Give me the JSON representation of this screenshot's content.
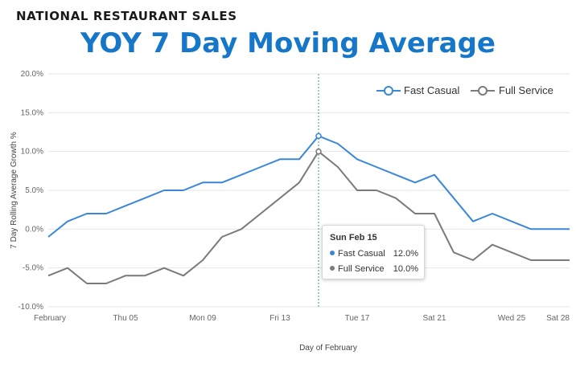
{
  "header": {
    "supertitle": "NATIONAL RESTAURANT SALES",
    "title": "YOY 7 Day Moving Average"
  },
  "colors": {
    "fast_casual": "#3a87d9",
    "full_service": "#7a7a7a",
    "crosshair": "#2e9b6a",
    "title": "#1677c9"
  },
  "chart_data": {
    "type": "line",
    "xlabel": "Day of February",
    "ylabel": "7 Day Rolling Average Growth %",
    "ylim": [
      -10,
      20
    ],
    "y_ticks": [
      "20.0%",
      "15.0%",
      "10.0%",
      "5.0%",
      "0.0%",
      "-5.0%",
      "-10.0%"
    ],
    "x_tick_labels": [
      {
        "day": 1,
        "label": "February"
      },
      {
        "day": 5,
        "label": "Thu 05"
      },
      {
        "day": 9,
        "label": "Mon 09"
      },
      {
        "day": 13,
        "label": "Fri 13"
      },
      {
        "day": 17,
        "label": "Tue 17"
      },
      {
        "day": 21,
        "label": "Sat 21"
      },
      {
        "day": 25,
        "label": "Wed 25"
      },
      {
        "day": 28,
        "label": "Sat 28"
      }
    ],
    "x": [
      1,
      2,
      3,
      4,
      5,
      6,
      7,
      8,
      9,
      10,
      11,
      12,
      13,
      14,
      15,
      16,
      17,
      18,
      19,
      20,
      21,
      22,
      23,
      24,
      25,
      26,
      27,
      28
    ],
    "series": [
      {
        "name": "Fast Casual",
        "values": [
          -1,
          1,
          2,
          2,
          3,
          4,
          5,
          5,
          6,
          6,
          7,
          8,
          9,
          9,
          12,
          11,
          9,
          8,
          7,
          6,
          7,
          4,
          1,
          2,
          1,
          0,
          0,
          0
        ]
      },
      {
        "name": "Full Service",
        "values": [
          -6,
          -5,
          -7,
          -7,
          -6,
          -6,
          -5,
          -6,
          -4,
          -1,
          0,
          2,
          4,
          6,
          10,
          8,
          5,
          5,
          4,
          2,
          2,
          -3,
          -4,
          -2,
          -3,
          -4,
          -4,
          -4
        ]
      }
    ],
    "legend_position": "top-right",
    "grid": true,
    "highlight": {
      "day": 15,
      "label": "Sun Feb 15"
    }
  },
  "tooltip": {
    "title": "Sun Feb 15",
    "rows": [
      {
        "name": "Fast Casual",
        "value": "12.0%"
      },
      {
        "name": "Full Service",
        "value": "10.0%"
      }
    ]
  }
}
